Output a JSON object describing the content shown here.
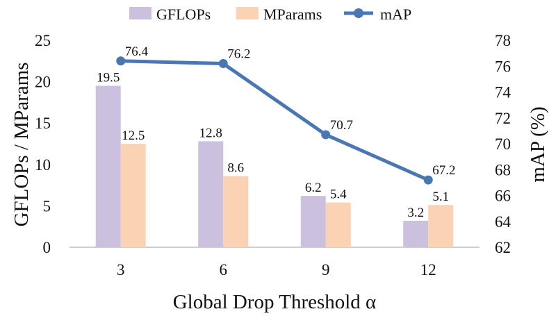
{
  "chart_data": {
    "type": "bar+line",
    "title": "",
    "categories": [
      "3",
      "6",
      "9",
      "12"
    ],
    "series": [
      {
        "name": "GFLOPs",
        "type": "bar",
        "axis": "left",
        "values": [
          19.5,
          12.8,
          6.2,
          3.2
        ],
        "labels": [
          "19.5",
          "12.8",
          "6.2",
          "3.2"
        ],
        "color": "#cbc0dd"
      },
      {
        "name": "MParams",
        "type": "bar",
        "axis": "left",
        "values": [
          12.5,
          8.6,
          5.4,
          5.1
        ],
        "labels": [
          "12.5",
          "8.6",
          "5.4",
          "5.1"
        ],
        "color": "#fbd3b4"
      },
      {
        "name": "mAP",
        "type": "line",
        "axis": "right",
        "values": [
          76.4,
          76.2,
          70.7,
          67.2
        ],
        "labels": [
          "76.4",
          "76.2",
          "70.7",
          "67.2"
        ],
        "color": "#4a77b4"
      }
    ],
    "xlabel": "Global Drop Threshold α",
    "ylabel_left": "GFLOPs / MParams",
    "ylabel_right": "mAP (%)",
    "ylim_left": [
      0,
      25
    ],
    "yticks_left": [
      "0",
      "5",
      "10",
      "15",
      "20",
      "25"
    ],
    "ylim_right": [
      62,
      78
    ],
    "yticks_right": [
      "62",
      "64",
      "66",
      "68",
      "70",
      "72",
      "74",
      "76",
      "78"
    ],
    "grid": false,
    "legend": {
      "position": "top",
      "entries": [
        "GFLOPs",
        "MParams",
        "mAP"
      ]
    }
  }
}
